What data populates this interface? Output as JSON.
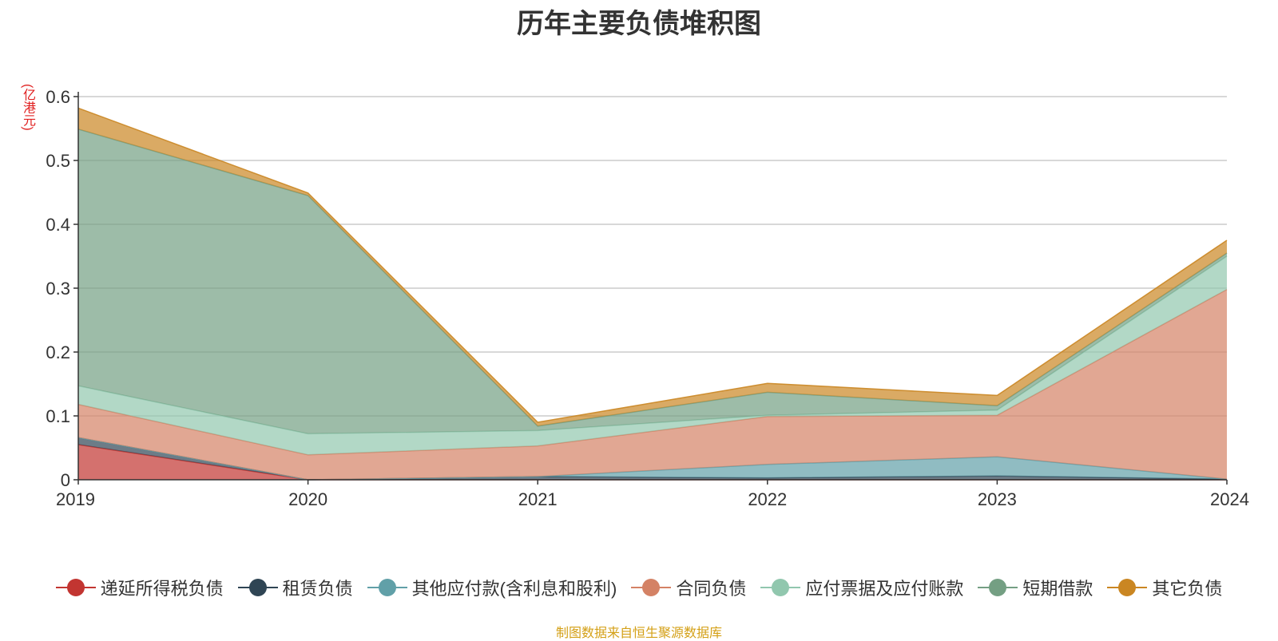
{
  "chart_data": {
    "type": "area",
    "stacked": true,
    "title": "历年主要负债堆积图",
    "unit_label": "(亿港元)",
    "x": [
      "2019",
      "2020",
      "2021",
      "2022",
      "2023",
      "2024"
    ],
    "yticks": [
      "0",
      "0.1",
      "0.2",
      "0.3",
      "0.4",
      "0.5",
      "0.6"
    ],
    "ylim": [
      0,
      0.6
    ],
    "grid": true,
    "legend_position": "bottom",
    "series": [
      {
        "name": "递延所得税负债",
        "color": "#c23531",
        "values": [
          0.055,
          0,
          0,
          0,
          0,
          0
        ]
      },
      {
        "name": "租赁负债",
        "color": "#2f4554",
        "values": [
          0.011,
          0,
          0.005,
          0.003,
          0.006,
          0.001
        ]
      },
      {
        "name": "其他应付款(含利息和股利)",
        "color": "#61a0a8",
        "values": [
          0,
          0,
          0,
          0.021,
          0.03,
          0
        ]
      },
      {
        "name": "合同负债",
        "color": "#d48265",
        "values": [
          0.052,
          0.039,
          0.048,
          0.075,
          0.065,
          0.297
        ]
      },
      {
        "name": "应付票据及应付账款",
        "color": "#91c7ae",
        "values": [
          0.029,
          0.033,
          0.024,
          0.002,
          0.008,
          0.052
        ]
      },
      {
        "name": "短期借款",
        "color": "#749f83",
        "values": [
          0.402,
          0.373,
          0.007,
          0.036,
          0.007,
          0.005
        ]
      },
      {
        "name": "其它负债",
        "color": "#ca8622",
        "values": [
          0.033,
          0.004,
          0.006,
          0.014,
          0.016,
          0.02
        ]
      }
    ]
  },
  "source_text": "制图数据来自恒生聚源数据库"
}
